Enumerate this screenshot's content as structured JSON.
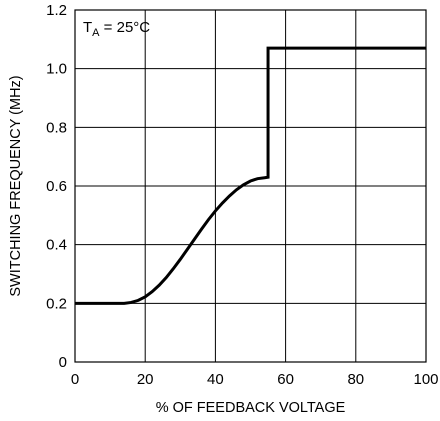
{
  "chart_data": {
    "type": "line",
    "title": "",
    "xlabel": "% OF FEEDBACK VOLTAGE",
    "ylabel": "SWITCHING FREQUENCY (MHz)",
    "xlim": [
      0,
      100
    ],
    "ylim": [
      0,
      1.2
    ],
    "x_ticks": [
      0,
      20,
      40,
      60,
      80,
      100
    ],
    "x_tick_labels": [
      "0",
      "20",
      "40",
      "60",
      "80",
      "100"
    ],
    "y_ticks": [
      0,
      0.2,
      0.4,
      0.6,
      0.8,
      1.0,
      1.2
    ],
    "y_tick_labels": [
      "0",
      "0.2",
      "0.4",
      "0.6",
      "0.8",
      "1.0",
      "1.2"
    ],
    "grid": true,
    "annotation": {
      "base": "T",
      "subscript": "A",
      "rest": " = 25°C"
    },
    "series": [
      {
        "x": [
          0,
          5,
          10,
          14,
          16,
          18,
          20,
          22,
          24,
          26,
          28,
          30,
          32,
          34,
          36,
          38,
          40,
          42,
          44,
          46,
          48,
          50,
          52,
          54,
          55,
          55,
          60,
          70,
          80,
          90,
          100
        ],
        "y": [
          0.2,
          0.2,
          0.2,
          0.2,
          0.203,
          0.21,
          0.222,
          0.24,
          0.262,
          0.288,
          0.318,
          0.35,
          0.384,
          0.418,
          0.452,
          0.485,
          0.515,
          0.542,
          0.566,
          0.587,
          0.604,
          0.617,
          0.625,
          0.628,
          0.63,
          1.07,
          1.07,
          1.07,
          1.07,
          1.07,
          1.07
        ]
      }
    ]
  }
}
